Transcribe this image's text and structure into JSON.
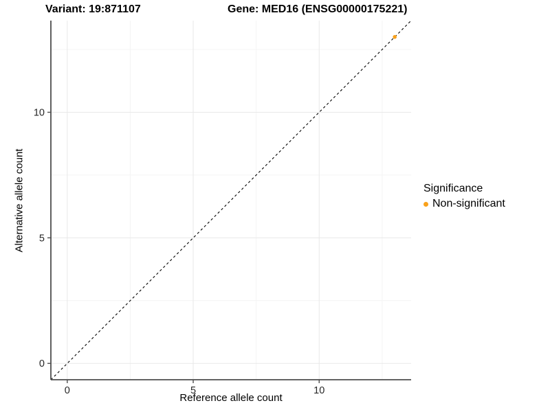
{
  "chart_data": {
    "type": "scatter",
    "title_left": "Variant: 19:871107",
    "title_right": "Gene: MED16 (ENSG00000175221)",
    "xlabel": "Reference allele count",
    "ylabel": "Alternative allele count",
    "xlim": [
      -0.65,
      13.65
    ],
    "ylim": [
      -0.65,
      13.65
    ],
    "x_ticks": [
      0,
      5,
      10
    ],
    "y_ticks": [
      0,
      5,
      10
    ],
    "x_minor_gridlines": [
      2.5,
      7.5,
      12.5
    ],
    "y_minor_gridlines": [
      2.5,
      7.5,
      12.5
    ],
    "grid": "on",
    "reference_line": {
      "type": "abline",
      "slope": 1,
      "intercept": 0,
      "style": "dashed",
      "color": "#000000"
    },
    "series": [
      {
        "name": "Non-significant",
        "color": "#F9A11B",
        "points": [
          {
            "x": 13,
            "y": 13
          }
        ]
      }
    ],
    "legend": {
      "title": "Significance",
      "position": "right",
      "entries": [
        {
          "label": "Non-significant",
          "color": "#F9A11B"
        }
      ]
    },
    "colors": {
      "point": "#F9A11B",
      "axis_line": "#4d4d4d",
      "tick_text": "#262626",
      "grid_major": "#e8e8e8",
      "grid_minor": "#f4f4f4",
      "background": "#ffffff"
    }
  }
}
